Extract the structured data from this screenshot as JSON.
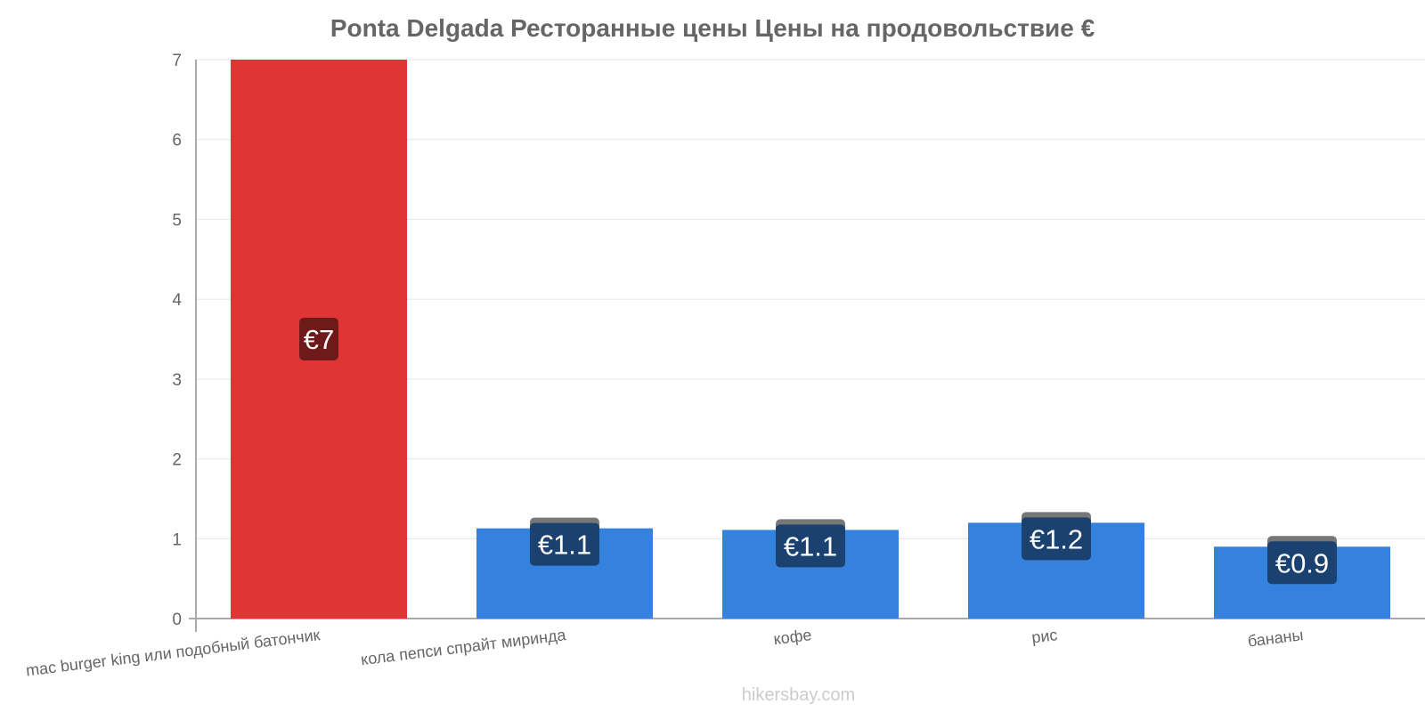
{
  "chart_data": {
    "type": "bar",
    "title": "Ponta Delgada Ресторанные цены Цены на продовольствие €",
    "categories": [
      "mac burger king или подобный батончик",
      "кола пепси спрайт миринда",
      "кофе",
      "рис",
      "бананы"
    ],
    "values": [
      7,
      1.13,
      1.11,
      1.2,
      0.9
    ],
    "value_labels": [
      "€7",
      "€1.1",
      "€1.1",
      "€1.2",
      "€0.9"
    ],
    "bar_colors": [
      "#e03535",
      "#3482de",
      "#3482de",
      "#3482de",
      "#3482de"
    ],
    "label_bg_colors": [
      "#6e1a1a",
      "#1a416f",
      "#1a416f",
      "#1a416f",
      "#1a416f"
    ],
    "ylim": [
      0,
      7
    ],
    "yticks": [
      "0",
      "1",
      "2",
      "3",
      "4",
      "5",
      "6",
      "7"
    ],
    "grid": true,
    "xlabel": "",
    "ylabel": ""
  },
  "watermark": "hikersbay.com"
}
